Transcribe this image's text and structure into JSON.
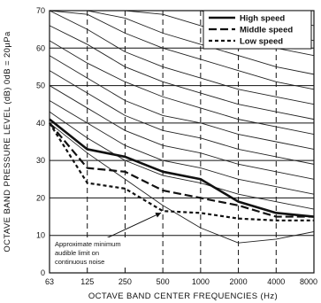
{
  "chart_data": {
    "type": "line",
    "xlabel": "OCTAVE BAND CENTER FREQUENCIES (Hz)",
    "ylabel": "OCTAVE BAND PRESSURE LEVEL (dB) 0dB = 20µPa",
    "categories": [
      "63",
      "125",
      "250",
      "500",
      "1000",
      "2000",
      "4000",
      "8000"
    ],
    "yticks": [
      0,
      10,
      20,
      30,
      40,
      50,
      60,
      70
    ],
    "ylim": [
      0,
      70
    ],
    "grid": true,
    "legend_position": "top-right",
    "series": [
      {
        "name": "High speed",
        "style": "solid-thick",
        "values": [
          41,
          33,
          31,
          27,
          25,
          19,
          16,
          15
        ]
      },
      {
        "name": "Middle speed",
        "style": "long-dash",
        "values": [
          40,
          28,
          27,
          22,
          20,
          18,
          15,
          15
        ]
      },
      {
        "name": "Low speed",
        "style": "short-dash",
        "values": [
          40,
          24,
          22.5,
          16.5,
          16,
          14.5,
          14,
          14
        ]
      }
    ],
    "reference_curves": [
      [
        70,
        70,
        70,
        70,
        70,
        70,
        70,
        70
      ],
      [
        70,
        70,
        70,
        70,
        70,
        70,
        68,
        66
      ],
      [
        70,
        70,
        70,
        70,
        70,
        67,
        64,
        62
      ],
      [
        70,
        70,
        70,
        69,
        66,
        63,
        60,
        58
      ],
      [
        70,
        70,
        68,
        64,
        61,
        58,
        55,
        53
      ],
      [
        70,
        69,
        64,
        60,
        57,
        54,
        51,
        49
      ],
      [
        70,
        65,
        59,
        55,
        52,
        49,
        47,
        45
      ],
      [
        66,
        61,
        55,
        51,
        48,
        45,
        43,
        41
      ],
      [
        62,
        56,
        51,
        47,
        44,
        41,
        39,
        37
      ],
      [
        58,
        52,
        46,
        42,
        40,
        37,
        35,
        33
      ],
      [
        54,
        48,
        42,
        38,
        36,
        33,
        31,
        29
      ],
      [
        50,
        44,
        38,
        34,
        32,
        29,
        27,
        25
      ],
      [
        46,
        40,
        34,
        30,
        28,
        25,
        23,
        21
      ],
      [
        43,
        36,
        30,
        26,
        24,
        21,
        19,
        17
      ]
    ],
    "threshold_curve": [
      40,
      32,
      25,
      18,
      12,
      8,
      9,
      11
    ],
    "annotation": {
      "lines": [
        "Approximate minimum",
        "audible limit on",
        "continuous noise"
      ],
      "target_index": 3,
      "target_value": 16.5
    }
  }
}
